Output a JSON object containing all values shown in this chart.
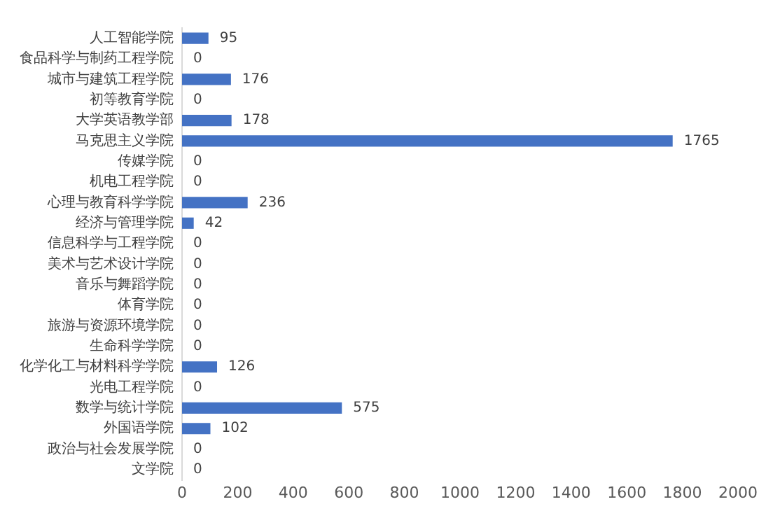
{
  "chart_data": {
    "type": "bar",
    "orientation": "horizontal",
    "categories": [
      "人工智能学院",
      "食品科学与制药工程学院",
      "城市与建筑工程学院",
      "初等教育学院",
      "大学英语教学部",
      "马克思主义学院",
      "传媒学院",
      "机电工程学院",
      "心理与教育科学学院",
      "经济与管理学院",
      "信息科学与工程学院",
      "美术与艺术设计学院",
      "音乐与舞蹈学院",
      "体育学院",
      "旅游与资源环境学院",
      "生命科学学院",
      "化学化工与材料科学学院",
      "光电工程学院",
      "数学与统计学院",
      "外国语学院",
      "政治与社会发展学院",
      "文学院"
    ],
    "values": [
      95,
      0,
      176,
      0,
      178,
      1765,
      0,
      0,
      236,
      42,
      0,
      0,
      0,
      0,
      0,
      0,
      126,
      0,
      575,
      102,
      0,
      0
    ],
    "color": "#4472c4",
    "xlim": [
      0,
      2000
    ],
    "xticks": [
      0,
      200,
      400,
      600,
      800,
      1000,
      1200,
      1400,
      1600,
      1800,
      2000
    ],
    "grid": false,
    "legend": false,
    "data_labels": true
  }
}
